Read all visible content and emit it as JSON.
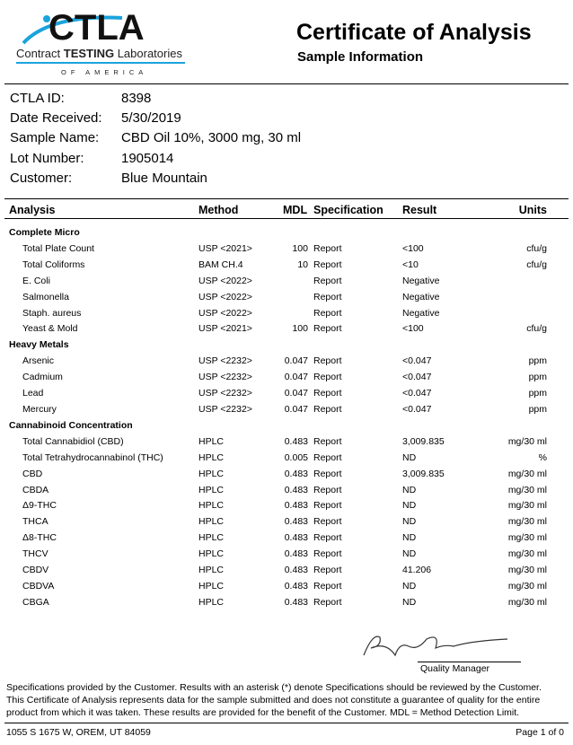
{
  "logo": {
    "text": "CTLA",
    "line1": "Contract TESTING Laboratories",
    "line2": "OF AMERICA",
    "accent": "#1ba3dc"
  },
  "header": {
    "title": "Certificate of Analysis",
    "subtitle": "Sample Information"
  },
  "info": [
    {
      "label": "CTLA ID:",
      "value": "8398"
    },
    {
      "label": "Date Received:",
      "value": "5/30/2019"
    },
    {
      "label": "Sample Name:",
      "value": "CBD Oil 10%, 3000 mg, 30 ml"
    },
    {
      "label": "Lot Number:",
      "value": "1905014"
    },
    {
      "label": "Customer:",
      "value": "Blue Mountain"
    }
  ],
  "table": {
    "headers": {
      "analysis": "Analysis",
      "method": "Method",
      "mdl": "MDL",
      "spec": "Specification",
      "result": "Result",
      "units": "Units"
    },
    "sections": [
      {
        "title": "Complete Micro",
        "rows": [
          [
            "Total Plate Count",
            "USP <2021>",
            "100",
            "Report",
            "<100",
            "cfu/g"
          ],
          [
            "Total Coliforms",
            "BAM CH.4",
            "10",
            "Report",
            "<10",
            "cfu/g"
          ],
          [
            "E. Coli",
            "USP <2022>",
            "",
            "Report",
            "Negative",
            ""
          ],
          [
            "Salmonella",
            "USP <2022>",
            "",
            "Report",
            "Negative",
            ""
          ],
          [
            "Staph. aureus",
            "USP <2022>",
            "",
            "Report",
            "Negative",
            ""
          ],
          [
            "Yeast & Mold",
            "USP <2021>",
            "100",
            "Report",
            "<100",
            "cfu/g"
          ]
        ]
      },
      {
        "title": "Heavy Metals",
        "rows": [
          [
            "Arsenic",
            "USP <2232>",
            "0.047",
            "Report",
            "<0.047",
            "ppm"
          ],
          [
            "Cadmium",
            "USP <2232>",
            "0.047",
            "Report",
            "<0.047",
            "ppm"
          ],
          [
            "Lead",
            "USP <2232>",
            "0.047",
            "Report",
            "<0.047",
            "ppm"
          ],
          [
            "Mercury",
            "USP <2232>",
            "0.047",
            "Report",
            "<0.047",
            "ppm"
          ]
        ]
      },
      {
        "title": "Cannabinoid Concentration",
        "rows": [
          [
            "Total Cannabidiol (CBD)",
            "HPLC",
            "0.483",
            "Report",
            "3,009.835",
            "mg/30 ml"
          ],
          [
            "Total Tetrahydrocannabinol (THC)",
            "HPLC",
            "0.005",
            "Report",
            "ND",
            "%"
          ],
          [
            "CBD",
            "HPLC",
            "0.483",
            "Report",
            "3,009.835",
            "mg/30 ml"
          ],
          [
            "CBDA",
            "HPLC",
            "0.483",
            "Report",
            "ND",
            "mg/30 ml"
          ],
          [
            "Δ9-THC",
            "HPLC",
            "0.483",
            "Report",
            "ND",
            "mg/30 ml"
          ],
          [
            "THCA",
            "HPLC",
            "0.483",
            "Report",
            "ND",
            "mg/30 ml"
          ],
          [
            "Δ8-THC",
            "HPLC",
            "0.483",
            "Report",
            "ND",
            "mg/30 ml"
          ],
          [
            "THCV",
            "HPLC",
            "0.483",
            "Report",
            "ND",
            "mg/30 ml"
          ],
          [
            "CBDV",
            "HPLC",
            "0.483",
            "Report",
            "41.206",
            "mg/30 ml"
          ],
          [
            "CBDVA",
            "HPLC",
            "0.483",
            "Report",
            "ND",
            "mg/30 ml"
          ],
          [
            "CBGA",
            "HPLC",
            "0.483",
            "Report",
            "ND",
            "mg/30 ml"
          ]
        ]
      }
    ]
  },
  "signature": {
    "role": "Quality Manager"
  },
  "footer": {
    "notes": [
      "Specifications provided by the Customer. Results with an asterisk (*) denote Specifications should be reviewed by the Customer.",
      "This Certificate of Analysis represents data for the sample submitted and does not constitute a guarantee of quality for the entire",
      "product from which it was taken. These results are provided for the benefit of the Customer.  MDL = Method Detection Limit."
    ],
    "address": "1055 S 1675 W, OREM, UT 84059",
    "page": "Page 1 of 0"
  }
}
